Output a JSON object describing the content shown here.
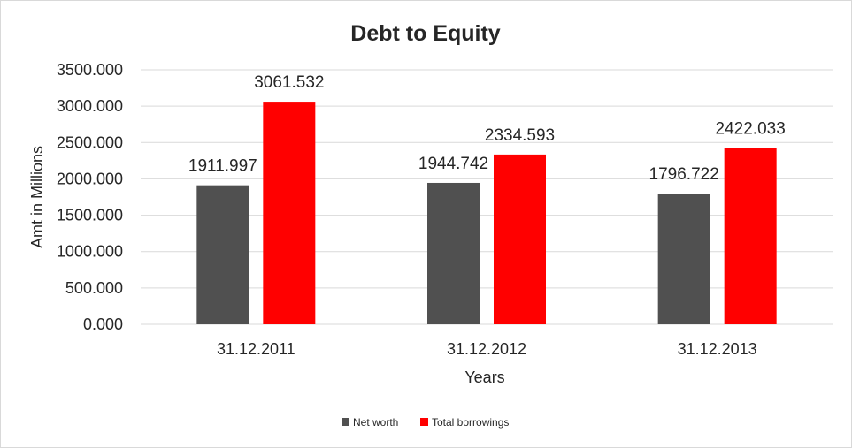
{
  "chart_data": {
    "type": "bar",
    "title": "Debt to Equity",
    "xlabel": "Years",
    "ylabel": "Amt in Millions",
    "categories": [
      "31.12.2011",
      "31.12.2012",
      "31.12.2013"
    ],
    "series": [
      {
        "name": "Net worth",
        "color": "#505050",
        "values": [
          1911.997,
          1944.742,
          1796.722
        ],
        "labels": [
          "1911.997",
          "1944.742",
          "1796.722"
        ]
      },
      {
        "name": "Total borrowings",
        "color": "#ff0000",
        "values": [
          3061.532,
          2334.593,
          2422.033
        ],
        "labels": [
          "3061.532",
          "2334.593",
          "2422.033"
        ]
      }
    ],
    "ylim": [
      0,
      3500
    ],
    "yticks": [
      0,
      500,
      1000,
      1500,
      2000,
      2500,
      3000,
      3500
    ],
    "ytick_labels": [
      "0.000",
      "500.000",
      "1000.000",
      "1500.000",
      "2000.000",
      "2500.000",
      "3000.000",
      "3500.000"
    ],
    "grid": true,
    "legend_position": "bottom"
  }
}
